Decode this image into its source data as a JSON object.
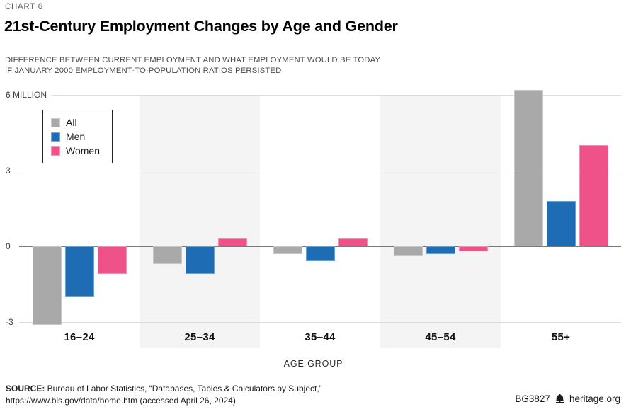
{
  "header": {
    "kicker": "CHART 6",
    "title": "21st-Century Employment Changes by Age and Gender",
    "subtitle_line1": "DIFFERENCE BETWEEN CURRENT EMPLOYMENT AND WHAT EMPLOYMENT WOULD BE TODAY",
    "subtitle_line2": "IF JANUARY 2000 EMPLOYMENT-TO-POPULATION RATIOS PERSISTED"
  },
  "chart_data": {
    "type": "bar",
    "title": "21st-Century Employment Changes by Age and Gender",
    "categories": [
      "16–24",
      "25–34",
      "35–44",
      "45–54",
      "55+"
    ],
    "series": [
      {
        "name": "All",
        "color": "#a9a9a9",
        "values": [
          -3.1,
          -0.7,
          -0.3,
          -0.4,
          6.2
        ]
      },
      {
        "name": "Men",
        "color": "#1d6cb4",
        "values": [
          -2.0,
          -1.1,
          -0.6,
          -0.3,
          1.8
        ]
      },
      {
        "name": "Women",
        "color": "#ef5189",
        "values": [
          -1.1,
          0.3,
          0.3,
          -0.2,
          4.0
        ]
      }
    ],
    "unit": "million",
    "y_ticks": [
      {
        "value": 6,
        "label": "6 MILLION"
      },
      {
        "value": 3,
        "label": "3"
      },
      {
        "value": 0,
        "label": "0"
      },
      {
        "value": -3,
        "label": "-3"
      }
    ],
    "ylim": [
      -3.5,
      6.5
    ],
    "xlabel": "AGE GROUP",
    "ylabel": "",
    "grid": true,
    "legend_position": "top-left",
    "banded_groups": [
      1,
      3
    ],
    "band_color": "#f4f4f4",
    "zero_line_color": "#7b7b7b",
    "grid_line_color": "#dcdcdc"
  },
  "footer": {
    "source_bold": "SOURCE:",
    "source_text": " Bureau of Labor Statistics, “Databases, Tables & Calculators by Subject,”",
    "source_line2": "https://www.bls.gov/data/home.htm (accessed April 26, 2024).",
    "doc_id": "BG3827",
    "brand": "heritage.org"
  }
}
